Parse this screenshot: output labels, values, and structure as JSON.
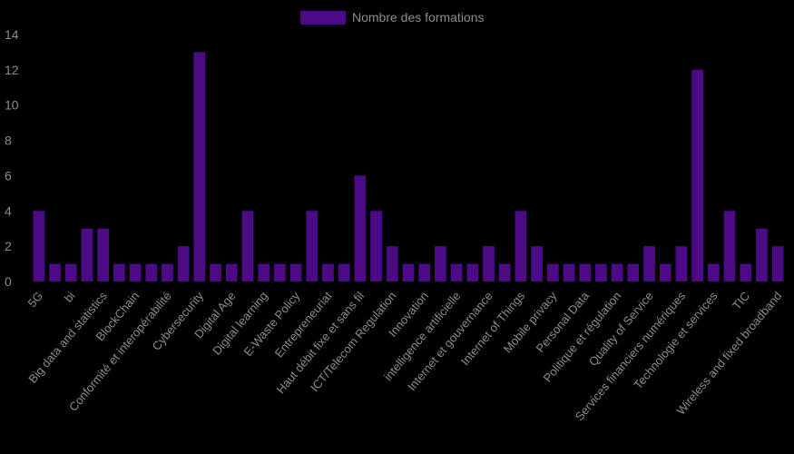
{
  "chart_data": {
    "type": "bar",
    "legend": {
      "position": "top",
      "label": "Nombre des formations"
    },
    "series": [
      {
        "name": "Nombre des formations",
        "color": "#4b0b85",
        "values": [
          4,
          1,
          1,
          3,
          3,
          1,
          1,
          1,
          1,
          2,
          13,
          1,
          1,
          4,
          1,
          1,
          1,
          4,
          1,
          1,
          6,
          4,
          2,
          1,
          1,
          2,
          1,
          1,
          2,
          1,
          4,
          2,
          1,
          1,
          1,
          1,
          1,
          1,
          2,
          1,
          2,
          12,
          1,
          4,
          1,
          3,
          2
        ]
      }
    ],
    "categories": [
      "5G",
      "",
      "bi",
      "",
      "Big data and statistics",
      "",
      "BlockChain",
      "",
      "Conformité et interopérabilité",
      "",
      "Cybersecurity",
      "",
      "Digital Age",
      "",
      "Digital learning",
      "",
      "E-Waste Policy",
      "",
      "Entrepreneuriat",
      "",
      "Haut débit fixe et sans fil",
      "",
      "ICT/Telecom Regulation",
      "",
      "Innovation",
      "",
      "intelligence artificielle",
      "",
      "Internet et gouvernance",
      "",
      "Internet of Things",
      "",
      "Mobile privacy",
      "",
      "Personal Data",
      "",
      "Politique et régulation",
      "",
      "Quality of Service",
      "",
      "Services financiers numériques",
      "",
      "Technologie et services",
      "",
      "TIC",
      "",
      "Wireless and fixed broadband"
    ],
    "y_ticks": [
      "0",
      "2",
      "4",
      "6",
      "8",
      "10",
      "12",
      "14"
    ],
    "ylim": [
      0,
      14
    ],
    "grid": false,
    "title": "",
    "xlabel": "",
    "ylabel": ""
  }
}
